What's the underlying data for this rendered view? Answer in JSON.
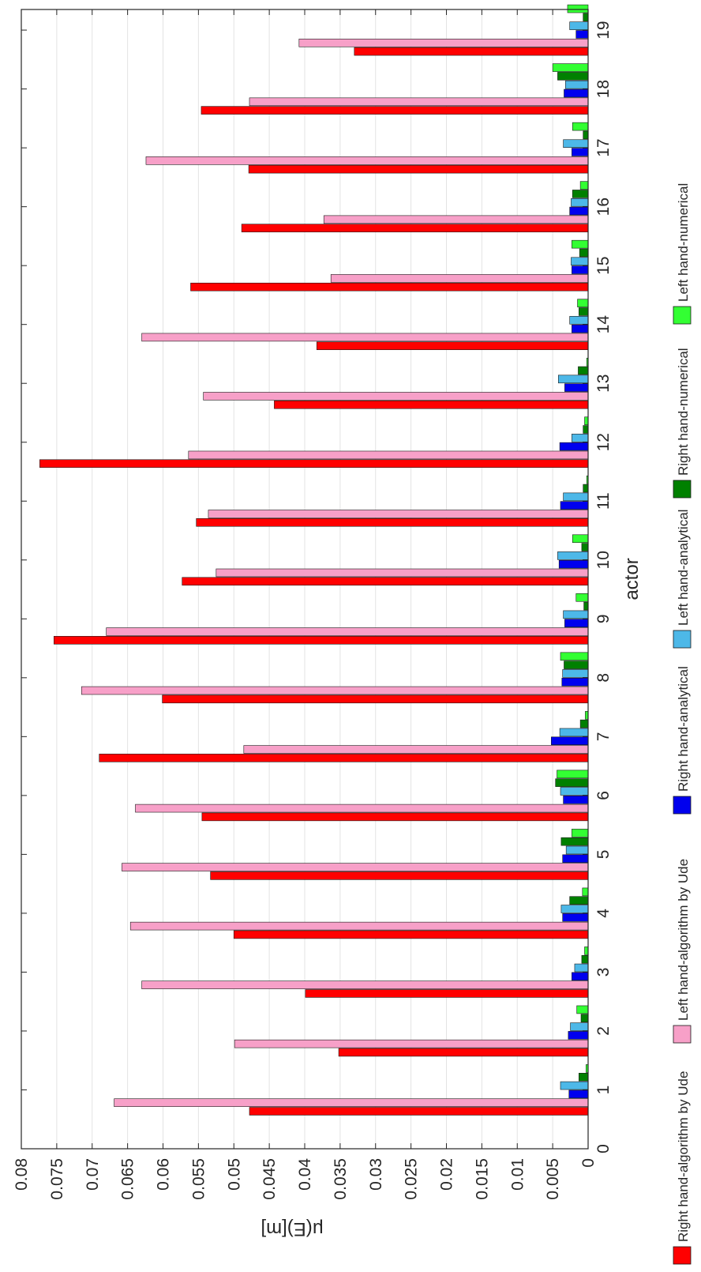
{
  "chart_data": {
    "type": "bar",
    "orientation": "horizontal",
    "xlabel": "actor",
    "ylabel": "μ(E)[m]",
    "ylim": [
      0,
      0.08
    ],
    "y_ticks": [
      "0",
      "0.005",
      "0.01",
      "0.015",
      "0.02",
      "0.025",
      "0.03",
      "0.035",
      "0.04",
      "0.045",
      "0.05",
      "0.055",
      "0.06",
      "0.065",
      "0.07",
      "0.075",
      "0.08"
    ],
    "categories": [
      "1",
      "2",
      "3",
      "4",
      "5",
      "6",
      "7",
      "8",
      "9",
      "10",
      "11",
      "12",
      "13",
      "14",
      "15",
      "16",
      "17",
      "18",
      "19"
    ],
    "x_ticks": [
      "0",
      "1",
      "2",
      "3",
      "4",
      "5",
      "6",
      "7",
      "8",
      "9",
      "10",
      "11",
      "12",
      "13",
      "14",
      "15",
      "16",
      "17",
      "18",
      "19"
    ],
    "grid": true,
    "legend_position": "bottom",
    "series": [
      {
        "name": "Right hand-algorithm by Ude",
        "color": "#ff0000",
        "values": [
          0.0478,
          0.0352,
          0.0399,
          0.05,
          0.0533,
          0.0545,
          0.069,
          0.0601,
          0.0754,
          0.0573,
          0.0553,
          0.0774,
          0.0443,
          0.0383,
          0.0561,
          0.0489,
          0.0479,
          0.0546,
          0.033
        ]
      },
      {
        "name": "Left hand-algorithm by Ude",
        "color": "#f7a0c8",
        "values": [
          0.0669,
          0.0499,
          0.063,
          0.0646,
          0.0658,
          0.0639,
          0.0486,
          0.0715,
          0.068,
          0.0525,
          0.0536,
          0.0564,
          0.0543,
          0.063,
          0.0363,
          0.0373,
          0.0624,
          0.0478,
          0.0408
        ]
      },
      {
        "name": "Right hand-analytical",
        "color": "#0000ee",
        "values": [
          0.0027,
          0.0028,
          0.0023,
          0.0036,
          0.0036,
          0.0035,
          0.0052,
          0.0037,
          0.0033,
          0.0041,
          0.0039,
          0.004,
          0.0033,
          0.0023,
          0.0023,
          0.0026,
          0.0023,
          0.0034,
          0.0017
        ]
      },
      {
        "name": "Left hand-analytical",
        "color": "#4db8e8",
        "values": [
          0.0039,
          0.0025,
          0.0019,
          0.0038,
          0.0031,
          0.0039,
          0.004,
          0.0036,
          0.0035,
          0.0043,
          0.0035,
          0.0023,
          0.0042,
          0.0026,
          0.0024,
          0.0024,
          0.0035,
          0.0032,
          0.0026
        ]
      },
      {
        "name": "Right hand-numerical",
        "color": "#008000",
        "values": [
          0.0013,
          0.001,
          0.0009,
          0.0026,
          0.0038,
          0.0046,
          0.0011,
          0.0034,
          0.0006,
          0.0009,
          0.0007,
          0.0007,
          0.0014,
          0.0013,
          0.0012,
          0.0022,
          0.0007,
          0.0043,
          0.0007
        ]
      },
      {
        "name": "Left hand-numerical",
        "color": "#33ff33",
        "values": [
          0.0003,
          0.0016,
          0.0005,
          0.0008,
          0.0023,
          0.0044,
          0.0004,
          0.0039,
          0.0017,
          0.0022,
          0.0002,
          0.0005,
          0.0002,
          0.0015,
          0.0023,
          0.0011,
          0.0022,
          0.005,
          0.0029
        ]
      }
    ]
  }
}
